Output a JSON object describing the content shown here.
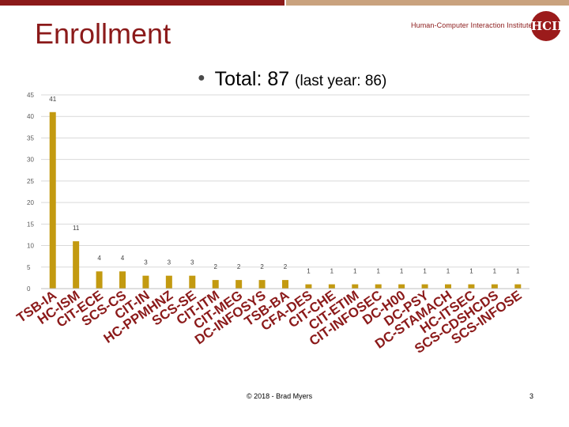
{
  "slide": {
    "title": "Enrollment",
    "institute": "Human-Computer Interaction Institute",
    "logo_text": "HCII",
    "footer": "© 2018 - Brad Myers",
    "page_number": "3",
    "legend_bullet": "●",
    "legend_main": "Total: 87",
    "legend_sub": "(last year: 86)",
    "colors": {
      "brand": "#8b1a1a",
      "accent_bar": "#c9a27e",
      "bar": "#c39a10",
      "grid": "#d9d9d9"
    }
  },
  "chart_data": {
    "type": "bar",
    "categories": [
      "TSB-IA",
      "HC-ISM",
      "CIT-ECE",
      "SCS-CS",
      "CIT-IN",
      "HC-PPMHNZ",
      "SCS-SE",
      "CIT-ITM",
      "CIT-MEG",
      "DC-INFOSYS",
      "TSB-BA",
      "CFA-DES",
      "CIT-CHE",
      "CIT-ETIM",
      "CIT-INFOSEC",
      "DC-H00",
      "DC-PSY",
      "DC-STAMACH",
      "HC-ITSEC",
      "SCS-CDSHCDS",
      "SCS-INFOSE"
    ],
    "values": [
      41,
      11,
      4,
      4,
      3,
      3,
      3,
      2,
      2,
      2,
      2,
      1,
      1,
      1,
      1,
      1,
      1,
      1,
      1,
      1,
      1
    ],
    "data_labels": [
      "41",
      "11",
      "4",
      "4",
      "3",
      "3",
      "3",
      "2",
      "2",
      "2",
      "2",
      "1",
      "1",
      "1",
      "1",
      "1",
      "1",
      "1",
      "1",
      "1",
      "1"
    ],
    "title": "",
    "xlabel": "",
    "ylabel": "",
    "ylim": [
      0,
      45
    ],
    "yticks": [
      "0",
      "5",
      "10",
      "15",
      "20",
      "25",
      "30",
      "35",
      "40",
      "45"
    ],
    "grid": true,
    "legend_position": "top-right"
  }
}
